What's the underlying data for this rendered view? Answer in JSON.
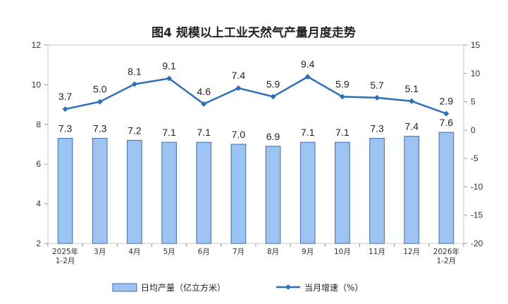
{
  "chart_data": {
    "type": "bar+line",
    "title": "图4  规模以上工业天然气产量月度走势",
    "categories": [
      [
        "2025年",
        "1-2月"
      ],
      [
        "3月"
      ],
      [
        "4月"
      ],
      [
        "5月"
      ],
      [
        "6月"
      ],
      [
        "7月"
      ],
      [
        "8月"
      ],
      [
        "9月"
      ],
      [
        "10月"
      ],
      [
        "11月"
      ],
      [
        "12月"
      ],
      [
        "2026年",
        "1-2月"
      ]
    ],
    "series": [
      {
        "name": "日均产量（亿立方米）",
        "type": "bar",
        "axis": "left",
        "color": "#9dc3f2",
        "values": [
          7.3,
          7.3,
          7.2,
          7.1,
          7.1,
          7.0,
          6.9,
          7.1,
          7.1,
          7.3,
          7.4,
          7.6
        ],
        "labels": [
          "7.3",
          "7.3",
          "7.2",
          "7.1",
          "7.1",
          "7.0",
          "6.9",
          "7.1",
          "7.1",
          "7.3",
          "7.4",
          "7.6"
        ]
      },
      {
        "name": "当月增速（%）",
        "type": "line",
        "axis": "right",
        "color": "#2e6fba",
        "values": [
          3.7,
          5.0,
          8.1,
          9.1,
          4.6,
          7.4,
          5.9,
          9.4,
          5.9,
          5.7,
          5.1,
          2.9
        ],
        "labels": [
          "3.7",
          "5.0",
          "8.1",
          "9.1",
          "4.6",
          "7.4",
          "5.9",
          "9.4",
          "5.9",
          "5.7",
          "5.1",
          "2.9"
        ]
      }
    ],
    "y_left": {
      "min": 2,
      "max": 12,
      "ticks": [
        "2",
        "4",
        "6",
        "8",
        "10",
        "12"
      ]
    },
    "y_right": {
      "min": -20,
      "max": 15,
      "ticks": [
        "-20",
        "-15",
        "-10",
        "-5",
        "0",
        "5",
        "10",
        "15"
      ]
    },
    "legend_placement": "bottom",
    "grid": false
  }
}
